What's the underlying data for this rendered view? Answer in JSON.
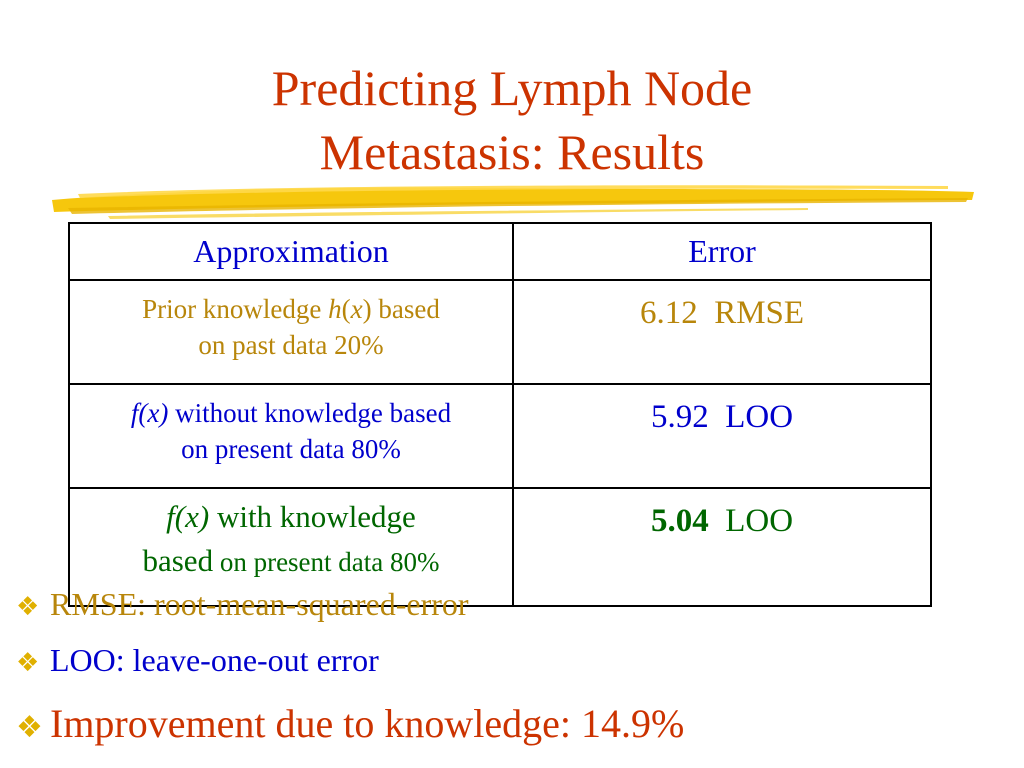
{
  "colors": {
    "title": "#cc3300",
    "header_text": "#0000cc",
    "gold_text": "#b8860b",
    "blue_text": "#0000cc",
    "green_text": "#006600",
    "improvement_text": "#cc3300",
    "bullet_mark": "#e0b000",
    "brush_stroke": "#f5c400"
  },
  "title": {
    "line1": "Predicting Lymph Node",
    "line2": "Metastasis: Results"
  },
  "table": {
    "headers": [
      "Approximation",
      "Error"
    ],
    "rows": [
      {
        "approx_a": "Prior  knowledge ",
        "approx_h": "h",
        "approx_paren_open": "(",
        "approx_x": "x",
        "approx_paren_close": ")",
        "approx_b": " based",
        "approx_line2": "on past data 20%",
        "error_value": "6.12",
        "error_metric": "RMSE"
      },
      {
        "approx_fx": "f(x)",
        "approx_a": " without knowledge based",
        "approx_line2": "on present data 80%",
        "error_value": "5.92",
        "error_metric": "LOO"
      },
      {
        "approx_fx": "f(x)",
        "approx_a": " with knowledge",
        "approx_b": "based",
        "approx_line2": " on present data 80%",
        "error_value": "5.04",
        "error_metric": "LOO"
      }
    ]
  },
  "bullets": [
    {
      "icon": "diamond-bullet-icon",
      "text": "RMSE: root-mean-squared-error"
    },
    {
      "icon": "diamond-bullet-icon",
      "text": "LOO: leave-one-out error"
    },
    {
      "icon": "diamond-bullet-icon",
      "text": "Improvement due to knowledge: 14.9%"
    }
  ]
}
